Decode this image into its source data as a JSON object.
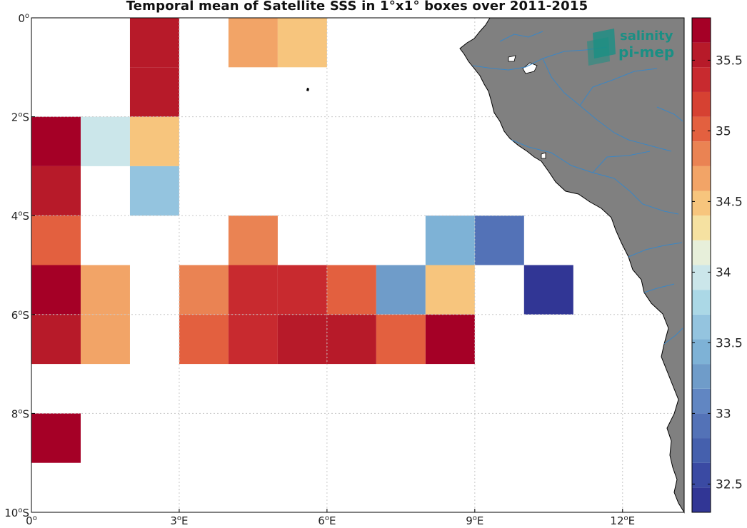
{
  "title": "Temporal mean of Satellite SSS in 1°x1° boxes over 2011-2015",
  "logo": {
    "line1": "salinity",
    "line2": "pi-mep"
  },
  "colors": {
    "land": "#808080",
    "river": "#3b86c4",
    "grid": "#c8c8c8",
    "logo": "#1a8f84"
  },
  "colorbar": {
    "min": 32.3,
    "max": 35.8,
    "step": 0.125,
    "tick_labels": [
      "32.5",
      "33",
      "33.5",
      "34",
      "34.5",
      "35",
      "35.5"
    ],
    "tick_values": [
      32.5,
      33,
      33.5,
      34,
      34.5,
      35,
      35.5
    ],
    "colors": [
      "#313695",
      "#3a4aa3",
      "#4560ad",
      "#5372b7",
      "#6186c2",
      "#6f9cc9",
      "#7eb2d6",
      "#94c4df",
      "#abd8e6",
      "#cbe6ea",
      "#e7efda",
      "#f5e1a1",
      "#f7c57d",
      "#f2a467",
      "#ea8353",
      "#e3603f",
      "#d64132",
      "#c82a2f",
      "#b71a29",
      "#a50026"
    ]
  },
  "chart_data": {
    "type": "heatmap",
    "title": "Temporal mean of Satellite SSS in 1°x1° boxes over 2011-2015",
    "x_ticks": [
      {
        "value": 0,
        "label": "0",
        "sup": "o",
        "suffix": ""
      },
      {
        "value": 3,
        "label": "3",
        "sup": "o",
        "suffix": "E"
      },
      {
        "value": 6,
        "label": "6",
        "sup": "o",
        "suffix": "E"
      },
      {
        "value": 9,
        "label": "9",
        "sup": "o",
        "suffix": "E"
      },
      {
        "value": 12,
        "label": "12",
        "sup": "o",
        "suffix": "E"
      }
    ],
    "y_ticks": [
      {
        "value": 0,
        "label": "0",
        "sup": "o",
        "suffix": ""
      },
      {
        "value": -2,
        "label": "2",
        "sup": "o",
        "suffix": "S"
      },
      {
        "value": -4,
        "label": "4",
        "sup": "o",
        "suffix": "S"
      },
      {
        "value": -6,
        "label": "6",
        "sup": "o",
        "suffix": "S"
      },
      {
        "value": -8,
        "label": "8",
        "sup": "o",
        "suffix": "S"
      },
      {
        "value": -10,
        "label": "10",
        "sup": "o",
        "suffix": "S"
      }
    ],
    "xlim": [
      0,
      13.25
    ],
    "ylim": [
      -10,
      0
    ],
    "cells": [
      {
        "lon": 2,
        "lat": 0,
        "sss": 35.6
      },
      {
        "lon": 2,
        "lat": -1,
        "sss": 35.6
      },
      {
        "lon": 4,
        "lat": 0,
        "sss": 34.7
      },
      {
        "lon": 5,
        "lat": 0,
        "sss": 34.4
      },
      {
        "lon": 0,
        "lat": -2,
        "sss": 35.8
      },
      {
        "lon": 1,
        "lat": -2,
        "sss": 34.0
      },
      {
        "lon": 2,
        "lat": -2,
        "sss": 34.4
      },
      {
        "lon": 0,
        "lat": -3,
        "sss": 35.5
      },
      {
        "lon": 2,
        "lat": -3,
        "sss": 33.6
      },
      {
        "lon": 0,
        "lat": -4,
        "sss": 35.0
      },
      {
        "lon": 4,
        "lat": -4,
        "sss": 34.8
      },
      {
        "lon": 8,
        "lat": -4,
        "sss": 33.5
      },
      {
        "lon": 9,
        "lat": -4,
        "sss": 32.9
      },
      {
        "lon": 0,
        "lat": -5,
        "sss": 35.8
      },
      {
        "lon": 1,
        "lat": -5,
        "sss": 34.7
      },
      {
        "lon": 3,
        "lat": -5,
        "sss": 34.8
      },
      {
        "lon": 4,
        "lat": -5,
        "sss": 35.3
      },
      {
        "lon": 5,
        "lat": -5,
        "sss": 35.3
      },
      {
        "lon": 6,
        "lat": -5,
        "sss": 35.0
      },
      {
        "lon": 7,
        "lat": -5,
        "sss": 33.3
      },
      {
        "lon": 8,
        "lat": -5,
        "sss": 34.5
      },
      {
        "lon": 10,
        "lat": -5,
        "sss": 32.4
      },
      {
        "lon": 0,
        "lat": -6,
        "sss": 35.5
      },
      {
        "lon": 1,
        "lat": -6,
        "sss": 34.7
      },
      {
        "lon": 3,
        "lat": -6,
        "sss": 35.0
      },
      {
        "lon": 4,
        "lat": -6,
        "sss": 35.4
      },
      {
        "lon": 5,
        "lat": -6,
        "sss": 35.6
      },
      {
        "lon": 6,
        "lat": -6,
        "sss": 35.6
      },
      {
        "lon": 7,
        "lat": -6,
        "sss": 35.0
      },
      {
        "lon": 8,
        "lat": -6,
        "sss": 35.7
      },
      {
        "lon": 0,
        "lat": -8,
        "sss": 35.8
      }
    ]
  }
}
